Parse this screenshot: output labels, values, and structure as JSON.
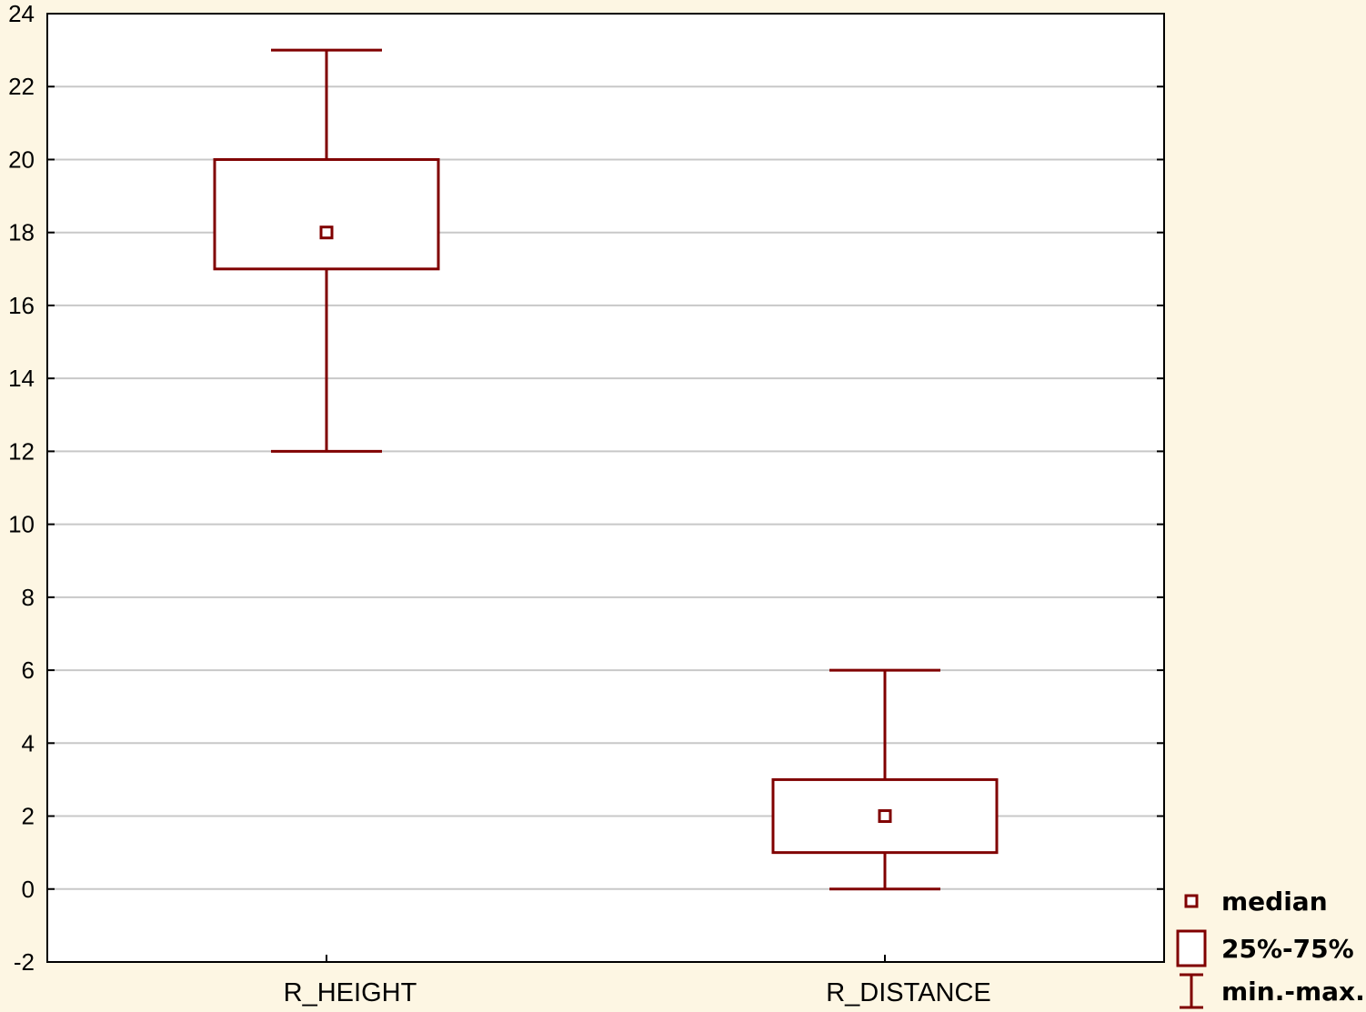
{
  "chart_data": {
    "type": "box",
    "categories": [
      "R_HEIGHT",
      "R_DISTANCE"
    ],
    "boxes": [
      {
        "category": "R_HEIGHT",
        "min": 12,
        "q1": 17,
        "median": 18,
        "q3": 20,
        "max": 23
      },
      {
        "category": "R_DISTANCE",
        "min": 0,
        "q1": 1,
        "median": 2,
        "q3": 3,
        "max": 6
      }
    ],
    "ylim": [
      -2,
      24
    ],
    "yticks": [
      -2,
      0,
      2,
      4,
      6,
      8,
      10,
      12,
      14,
      16,
      18,
      20,
      22,
      24
    ],
    "grid": true,
    "legend": {
      "placement": "bottom-right",
      "items": [
        {
          "symbol": "median-marker",
          "label": "median"
        },
        {
          "symbol": "box",
          "label": "25%-75%"
        },
        {
          "symbol": "whisker",
          "label": "min.-max."
        }
      ]
    },
    "colors": {
      "box": "#800000",
      "plot_background": "#ffffff",
      "page_background": "#fdf6e3",
      "grid": "#c8c8c8"
    }
  }
}
